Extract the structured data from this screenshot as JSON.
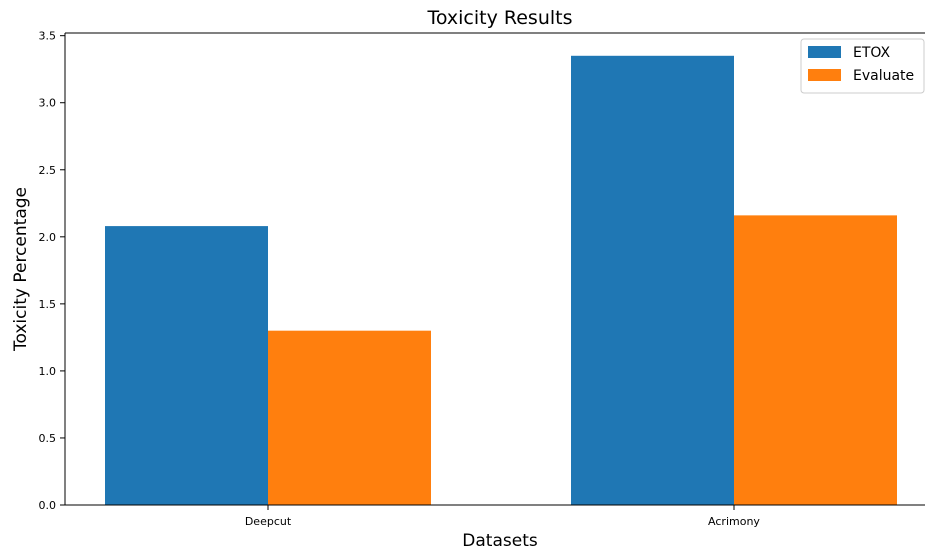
{
  "chart_data": {
    "type": "bar",
    "title": "Toxicity Results",
    "xlabel": "Datasets",
    "ylabel": "Toxicity Percentage",
    "categories": [
      "Deepcut",
      "Acrimony"
    ],
    "series": [
      {
        "name": "ETOX",
        "values": [
          2.08,
          3.35
        ],
        "color": "#1f77b4"
      },
      {
        "name": "Evaluate",
        "values": [
          1.3,
          2.16
        ],
        "color": "#ff7f0e"
      }
    ],
    "ylim": [
      0,
      3.52
    ],
    "yticks": [
      "0.0",
      "0.5",
      "1.0",
      "1.5",
      "2.0",
      "2.5",
      "3.0",
      "3.5"
    ],
    "grid": false,
    "legend_position": "top-right"
  }
}
